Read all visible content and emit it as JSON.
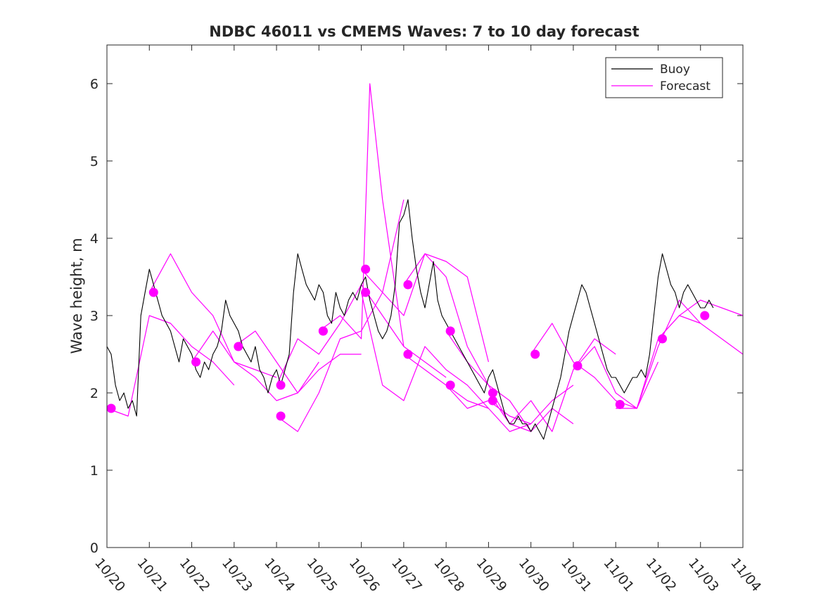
{
  "chart_data": {
    "type": "line",
    "title": "NDBC 46011 vs CMEMS Waves: 7 to 10 day forecast",
    "xlabel": "",
    "ylabel": "Wave height, m",
    "xlim": [
      0,
      15
    ],
    "ylim": [
      0,
      6.5
    ],
    "x_unit": "days since 10/20",
    "x_tick_values": [
      0,
      1,
      2,
      3,
      4,
      5,
      6,
      7,
      8,
      9,
      10,
      11,
      12,
      13,
      14,
      15
    ],
    "x_tick_labels": [
      "10/20",
      "10/21",
      "10/22",
      "10/23",
      "10/24",
      "10/25",
      "10/26",
      "10/27",
      "10/28",
      "10/29",
      "10/30",
      "10/31",
      "11/01",
      "11/02",
      "11/03",
      "11/04"
    ],
    "y_tick_values": [
      0,
      1,
      2,
      3,
      4,
      5,
      6
    ],
    "y_tick_labels": [
      "0",
      "1",
      "2",
      "3",
      "4",
      "5",
      "6"
    ],
    "legend": {
      "position": "top-right",
      "entries": [
        {
          "label": "Buoy",
          "color": "#000000"
        },
        {
          "label": "Forecast",
          "color": "#ff00ff"
        }
      ]
    },
    "colors": {
      "buoy": "#000000",
      "forecast": "#ff00ff"
    },
    "buoy": {
      "name": "Buoy",
      "x": [
        0,
        0.1,
        0.2,
        0.3,
        0.4,
        0.5,
        0.6,
        0.7,
        0.8,
        0.9,
        1.0,
        1.1,
        1.2,
        1.3,
        1.4,
        1.5,
        1.6,
        1.7,
        1.8,
        1.9,
        2.0,
        2.1,
        2.2,
        2.3,
        2.4,
        2.5,
        2.6,
        2.7,
        2.8,
        2.9,
        3.0,
        3.1,
        3.2,
        3.3,
        3.4,
        3.5,
        3.6,
        3.7,
        3.8,
        3.9,
        4.0,
        4.1,
        4.2,
        4.3,
        4.4,
        4.5,
        4.6,
        4.7,
        4.8,
        4.9,
        5.0,
        5.1,
        5.2,
        5.3,
        5.4,
        5.5,
        5.6,
        5.7,
        5.8,
        5.9,
        6.0,
        6.1,
        6.2,
        6.3,
        6.4,
        6.5,
        6.6,
        6.7,
        6.8,
        6.9,
        7.0,
        7.1,
        7.2,
        7.3,
        7.4,
        7.5,
        7.6,
        7.7,
        7.8,
        7.9,
        8.0,
        8.1,
        8.2,
        8.3,
        8.4,
        8.5,
        8.6,
        8.7,
        8.8,
        8.9,
        9.0,
        9.1,
        9.2,
        9.3,
        9.4,
        9.5,
        9.6,
        9.7,
        9.8,
        9.9,
        10.0,
        10.1,
        10.2,
        10.3,
        10.4,
        10.5,
        10.6,
        10.7,
        10.8,
        10.9,
        11.0,
        11.1,
        11.2,
        11.3,
        11.4,
        11.5,
        11.6,
        11.7,
        11.8,
        11.9,
        12.0,
        12.1,
        12.2,
        12.3,
        12.4,
        12.5,
        12.6,
        12.7,
        12.8,
        12.9,
        13.0,
        13.1,
        13.2,
        13.3,
        13.4,
        13.5,
        13.6,
        13.7,
        13.8,
        13.9,
        14.0,
        14.1,
        14.2,
        14.3
      ],
      "values": [
        2.6,
        2.5,
        2.1,
        1.9,
        2.0,
        1.8,
        1.9,
        1.7,
        3.0,
        3.3,
        3.6,
        3.4,
        3.2,
        3.0,
        2.9,
        2.8,
        2.6,
        2.4,
        2.7,
        2.6,
        2.5,
        2.3,
        2.2,
        2.4,
        2.3,
        2.5,
        2.6,
        2.8,
        3.2,
        3.0,
        2.9,
        2.8,
        2.6,
        2.5,
        2.4,
        2.6,
        2.3,
        2.2,
        2.0,
        2.2,
        2.3,
        2.1,
        2.3,
        2.5,
        3.3,
        3.8,
        3.6,
        3.4,
        3.3,
        3.2,
        3.4,
        3.3,
        3.0,
        2.9,
        3.3,
        3.1,
        3.0,
        3.2,
        3.3,
        3.2,
        3.4,
        3.5,
        3.2,
        3.0,
        2.8,
        2.7,
        2.8,
        3.0,
        3.4,
        4.2,
        4.3,
        4.5,
        4.0,
        3.6,
        3.3,
        3.1,
        3.4,
        3.7,
        3.2,
        3.0,
        2.9,
        2.8,
        2.7,
        2.6,
        2.5,
        2.4,
        2.3,
        2.2,
        2.1,
        2.0,
        2.2,
        2.3,
        2.1,
        1.9,
        1.7,
        1.6,
        1.6,
        1.7,
        1.6,
        1.6,
        1.5,
        1.6,
        1.5,
        1.4,
        1.6,
        1.8,
        2.0,
        2.2,
        2.5,
        2.8,
        3.0,
        3.2,
        3.4,
        3.3,
        3.1,
        2.9,
        2.7,
        2.5,
        2.3,
        2.2,
        2.2,
        2.1,
        2.0,
        2.1,
        2.2,
        2.2,
        2.3,
        2.2,
        2.5,
        3.0,
        3.5,
        3.8,
        3.6,
        3.4,
        3.3,
        3.1,
        3.3,
        3.4,
        3.3,
        3.2,
        3.1,
        3.1,
        3.2,
        3.1
      ]
    },
    "forecast_runs": [
      {
        "x": [
          0,
          0.5,
          1,
          1.5,
          2,
          2.5,
          3
        ],
        "values": [
          1.8,
          1.7,
          3.0,
          2.9,
          2.6,
          2.4,
          2.1
        ]
      },
      {
        "x": [
          1,
          1.5,
          2,
          2.5,
          3,
          3.5,
          4
        ],
        "values": [
          3.3,
          3.8,
          3.3,
          3.0,
          2.4,
          2.3,
          2.2
        ]
      },
      {
        "x": [
          2,
          2.5,
          3,
          3.5,
          4,
          4.5,
          5
        ],
        "values": [
          2.4,
          2.8,
          2.4,
          2.2,
          1.9,
          2.0,
          2.4
        ]
      },
      {
        "x": [
          3,
          3.5,
          4,
          4.5,
          5,
          5.5,
          6
        ],
        "values": [
          2.6,
          2.8,
          2.4,
          2.0,
          2.3,
          2.5,
          2.5
        ]
      },
      {
        "x": [
          4,
          4.5,
          5,
          5.5,
          6,
          6.5,
          7
        ],
        "values": [
          2.1,
          2.7,
          2.5,
          2.9,
          3.4,
          3.0,
          2.6
        ]
      },
      {
        "x": [
          4,
          4.5,
          5,
          5.5,
          6,
          6.5,
          7
        ],
        "values": [
          1.7,
          1.5,
          2.0,
          2.7,
          2.8,
          3.3,
          4.5
        ]
      },
      {
        "x": [
          5,
          5.5,
          6,
          6.2,
          6.5,
          7,
          7.5,
          8
        ],
        "values": [
          2.8,
          3.0,
          2.7,
          6.0,
          4.5,
          2.6,
          2.4,
          2.2
        ]
      },
      {
        "x": [
          6,
          6.5,
          7,
          7.5,
          8,
          8.5,
          9
        ],
        "values": [
          3.3,
          2.1,
          1.9,
          2.6,
          2.3,
          2.1,
          1.8
        ]
      },
      {
        "x": [
          6,
          6.5,
          7,
          7.5,
          8,
          8.5,
          9
        ],
        "values": [
          3.6,
          3.3,
          3.0,
          3.8,
          3.7,
          3.5,
          2.4
        ]
      },
      {
        "x": [
          7,
          7.5,
          8,
          8.5,
          9,
          9.5,
          10
        ],
        "values": [
          3.4,
          3.8,
          3.5,
          2.6,
          2.1,
          1.9,
          1.5
        ]
      },
      {
        "x": [
          7,
          7.5,
          8,
          8.5,
          9,
          9.5,
          10
        ],
        "values": [
          2.5,
          2.3,
          2.1,
          1.8,
          1.9,
          1.7,
          1.6
        ]
      },
      {
        "x": [
          8,
          8.5,
          9,
          9.5,
          10,
          10.5,
          11
        ],
        "values": [
          2.8,
          2.4,
          2.1,
          1.6,
          1.5,
          1.8,
          1.6
        ]
      },
      {
        "x": [
          8,
          8.5,
          9,
          9.5,
          10,
          10.5,
          11
        ],
        "values": [
          2.1,
          1.9,
          1.8,
          1.5,
          1.6,
          1.9,
          2.1
        ]
      },
      {
        "x": [
          9,
          9.5,
          10,
          10.5,
          11,
          11.5,
          12
        ],
        "values": [
          2.0,
          1.6,
          1.9,
          1.5,
          2.3,
          2.7,
          2.5
        ]
      },
      {
        "x": [
          10,
          10.5,
          11,
          11.5,
          12,
          12.5,
          13
        ],
        "values": [
          2.5,
          2.9,
          2.4,
          2.2,
          1.9,
          1.8,
          2.4
        ]
      },
      {
        "x": [
          11,
          11.5,
          12,
          12.5,
          13,
          13.5,
          14
        ],
        "values": [
          2.3,
          2.6,
          2.0,
          1.8,
          2.7,
          3.0,
          2.9
        ]
      },
      {
        "x": [
          12,
          12.5,
          13,
          13.5,
          14,
          14.5,
          15
        ],
        "values": [
          1.8,
          1.8,
          2.6,
          3.2,
          2.9,
          2.7,
          2.5
        ]
      },
      {
        "x": [
          13,
          13.5,
          14,
          14.5,
          15
        ],
        "values": [
          2.7,
          3.0,
          3.2,
          3.1,
          3.0
        ]
      }
    ],
    "forecast_markers": {
      "x": [
        0.1,
        1.1,
        2.1,
        3.1,
        4.1,
        4.1,
        5.1,
        5.1,
        6.1,
        6.1,
        7.1,
        7.1,
        8.1,
        8.1,
        9.1,
        9.1,
        10.1,
        11.1,
        12.1,
        13.1,
        14.1
      ],
      "values": [
        1.8,
        3.3,
        2.4,
        2.6,
        2.1,
        1.7,
        2.8,
        2.8,
        3.6,
        3.3,
        3.4,
        2.5,
        2.8,
        2.1,
        2.0,
        1.9,
        2.5,
        2.35,
        1.85,
        2.7,
        3.0
      ]
    }
  }
}
